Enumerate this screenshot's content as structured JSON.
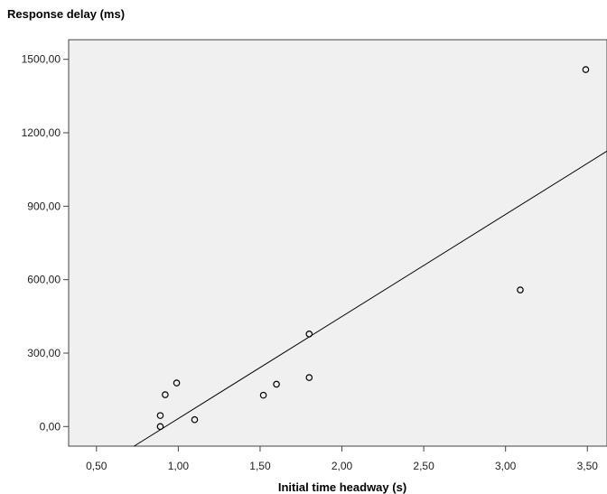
{
  "chart_data": {
    "type": "scatter",
    "ylabel": "Response delay (ms)",
    "xlabel": "Initial time headway (s)",
    "xlim": [
      0.33,
      3.62
    ],
    "ylim": [
      -80,
      1580
    ],
    "x_ticks": [
      0.5,
      1.0,
      1.5,
      2.0,
      2.5,
      3.0,
      3.5
    ],
    "x_tick_labels": [
      "0,50",
      "1,00",
      "1,50",
      "2,00",
      "2,50",
      "3,00",
      "3,50"
    ],
    "y_ticks": [
      0,
      300,
      600,
      900,
      1200,
      1500
    ],
    "y_tick_labels": [
      "0,00",
      "300,00",
      "600,00",
      "900,00",
      "1200,00",
      "1500,00"
    ],
    "points": [
      {
        "x": 0.89,
        "y": 45
      },
      {
        "x": 0.89,
        "y": 0
      },
      {
        "x": 0.92,
        "y": 130
      },
      {
        "x": 0.99,
        "y": 178
      },
      {
        "x": 1.1,
        "y": 28
      },
      {
        "x": 1.52,
        "y": 128
      },
      {
        "x": 1.6,
        "y": 173
      },
      {
        "x": 1.8,
        "y": 378
      },
      {
        "x": 1.8,
        "y": 200
      },
      {
        "x": 3.09,
        "y": 558
      },
      {
        "x": 3.49,
        "y": 1458
      }
    ],
    "fit_line": {
      "x": [
        0.73,
        3.62
      ],
      "y": [
        -80,
        1125
      ]
    },
    "grid": false,
    "colors": {
      "plot_background": "#f0f0f0",
      "frame": "#444444",
      "marker_stroke": "#000000",
      "line": "#000000"
    }
  }
}
